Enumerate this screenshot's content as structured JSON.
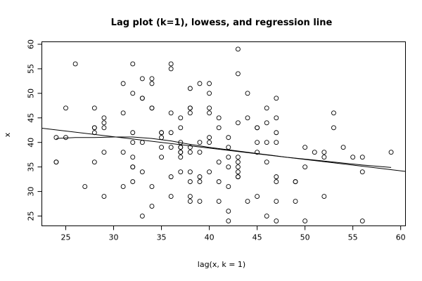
{
  "chart_data": {
    "type": "scatter",
    "title": "Lag plot (k=1), lowess, and regression line",
    "xlabel": "lag(x, k = 1)",
    "ylabel": "x",
    "xlim": [
      22.5,
      60.5
    ],
    "ylim": [
      23,
      60.5
    ],
    "xticks": [
      25,
      30,
      35,
      40,
      45,
      50,
      55,
      60
    ],
    "yticks": [
      25,
      30,
      35,
      40,
      45,
      50,
      55,
      60
    ],
    "points": [
      [
        24,
        41
      ],
      [
        24,
        36
      ],
      [
        24,
        36
      ],
      [
        25,
        47
      ],
      [
        25,
        41
      ],
      [
        26,
        56
      ],
      [
        27,
        31
      ],
      [
        28,
        47
      ],
      [
        28,
        43
      ],
      [
        28,
        43
      ],
      [
        28,
        42
      ],
      [
        28,
        36
      ],
      [
        29,
        45
      ],
      [
        29,
        44
      ],
      [
        29,
        43
      ],
      [
        29,
        38
      ],
      [
        29,
        29
      ],
      [
        31,
        52
      ],
      [
        31,
        46
      ],
      [
        31,
        38
      ],
      [
        31,
        31
      ],
      [
        32,
        56
      ],
      [
        32,
        50
      ],
      [
        32,
        42
      ],
      [
        32,
        40
      ],
      [
        32,
        37
      ],
      [
        32,
        35
      ],
      [
        32,
        35
      ],
      [
        32,
        32
      ],
      [
        33,
        53
      ],
      [
        33,
        49
      ],
      [
        33,
        49
      ],
      [
        33,
        40
      ],
      [
        33,
        34
      ],
      [
        33,
        25
      ],
      [
        34,
        53
      ],
      [
        34,
        52
      ],
      [
        34,
        47
      ],
      [
        34,
        47
      ],
      [
        34,
        31
      ],
      [
        34,
        27
      ],
      [
        35,
        42
      ],
      [
        35,
        42
      ],
      [
        35,
        41
      ],
      [
        35,
        39
      ],
      [
        35,
        37
      ],
      [
        36,
        56
      ],
      [
        36,
        55
      ],
      [
        36,
        46
      ],
      [
        36,
        42
      ],
      [
        36,
        39
      ],
      [
        36,
        33
      ],
      [
        36,
        29
      ],
      [
        37,
        45
      ],
      [
        37,
        43
      ],
      [
        37,
        40
      ],
      [
        37,
        39
      ],
      [
        37,
        39
      ],
      [
        37,
        38
      ],
      [
        37,
        38
      ],
      [
        37,
        37
      ],
      [
        37,
        34
      ],
      [
        38,
        51
      ],
      [
        38,
        47
      ],
      [
        38,
        47
      ],
      [
        38,
        46
      ],
      [
        38,
        39
      ],
      [
        38,
        38
      ],
      [
        38,
        34
      ],
      [
        38,
        32
      ],
      [
        38,
        29
      ],
      [
        38,
        28
      ],
      [
        39,
        52
      ],
      [
        39,
        40
      ],
      [
        39,
        38
      ],
      [
        39,
        33
      ],
      [
        39,
        32
      ],
      [
        39,
        28
      ],
      [
        40,
        52
      ],
      [
        40,
        50
      ],
      [
        40,
        47
      ],
      [
        40,
        46
      ],
      [
        40,
        41
      ],
      [
        40,
        40
      ],
      [
        40,
        34
      ],
      [
        41,
        45
      ],
      [
        41,
        43
      ],
      [
        41,
        36
      ],
      [
        41,
        32
      ],
      [
        41,
        28
      ],
      [
        42,
        41
      ],
      [
        42,
        39
      ],
      [
        42,
        37
      ],
      [
        42,
        35
      ],
      [
        42,
        31
      ],
      [
        42,
        26
      ],
      [
        42,
        24
      ],
      [
        43,
        59
      ],
      [
        43,
        54
      ],
      [
        43,
        44
      ],
      [
        43,
        37
      ],
      [
        43,
        36
      ],
      [
        43,
        35
      ],
      [
        43,
        34
      ],
      [
        43,
        33
      ],
      [
        43,
        33
      ],
      [
        44,
        50
      ],
      [
        44,
        45
      ],
      [
        44,
        28
      ],
      [
        45,
        43
      ],
      [
        45,
        43
      ],
      [
        45,
        40
      ],
      [
        45,
        38
      ],
      [
        45,
        29
      ],
      [
        46,
        47
      ],
      [
        46,
        44
      ],
      [
        46,
        40
      ],
      [
        46,
        36
      ],
      [
        46,
        25
      ],
      [
        47,
        49
      ],
      [
        47,
        45
      ],
      [
        47,
        42
      ],
      [
        47,
        40
      ],
      [
        47,
        33
      ],
      [
        47,
        32
      ],
      [
        47,
        28
      ],
      [
        47,
        24
      ],
      [
        49,
        32
      ],
      [
        49,
        32
      ],
      [
        49,
        28
      ],
      [
        50,
        39
      ],
      [
        50,
        35
      ],
      [
        50,
        24
      ],
      [
        51,
        38
      ],
      [
        52,
        38
      ],
      [
        52,
        37
      ],
      [
        52,
        29
      ],
      [
        53,
        46
      ],
      [
        53,
        43
      ],
      [
        54,
        39
      ],
      [
        55,
        37
      ],
      [
        56,
        37
      ],
      [
        56,
        34
      ],
      [
        56,
        24
      ],
      [
        59,
        38
      ]
    ],
    "regression_line": [
      [
        22.5,
        42.9
      ],
      [
        60.5,
        34.1
      ]
    ],
    "lowess_line": [
      [
        24,
        40.8
      ],
      [
        26,
        41.0
      ],
      [
        28,
        41.0
      ],
      [
        30,
        41.1
      ],
      [
        32,
        41.1
      ],
      [
        34,
        40.8
      ],
      [
        36,
        40.3
      ],
      [
        38,
        39.6
      ],
      [
        40,
        39.0
      ],
      [
        42,
        38.5
      ],
      [
        44,
        38.0
      ],
      [
        46,
        37.5
      ],
      [
        48,
        37.0
      ],
      [
        50,
        36.6
      ],
      [
        52,
        36.2
      ],
      [
        54,
        35.8
      ],
      [
        56,
        35.4
      ],
      [
        59,
        34.9
      ]
    ]
  }
}
